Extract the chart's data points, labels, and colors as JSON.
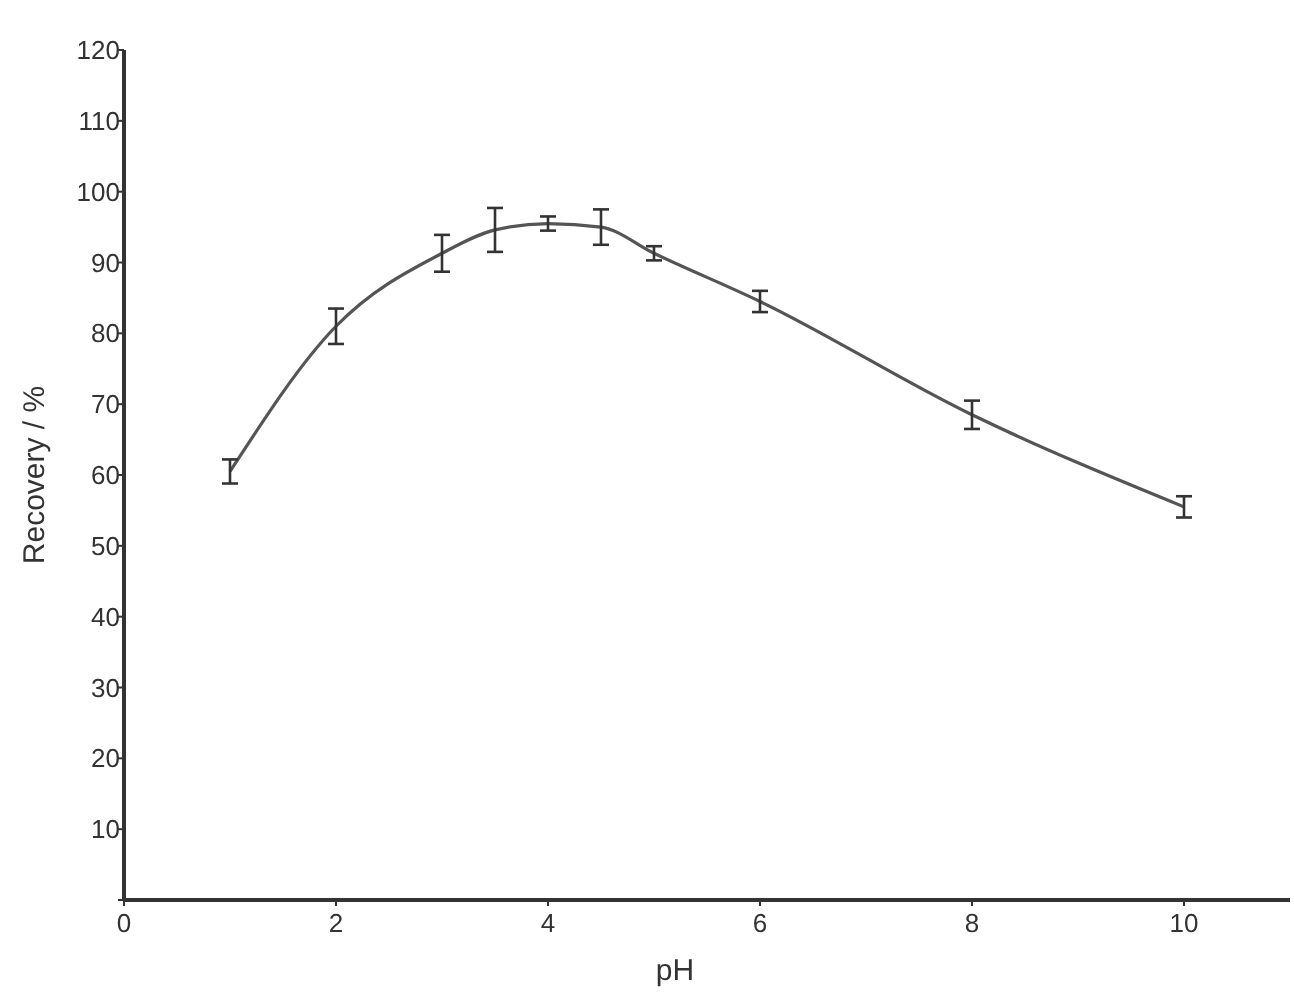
{
  "chart_data": {
    "type": "line",
    "xlabel": "pH",
    "ylabel": "Recovery / %",
    "x": [
      1,
      2,
      3,
      3.5,
      4,
      4.5,
      5,
      6,
      8,
      10
    ],
    "series": [
      {
        "color": "#555555",
        "values": [
          60.5,
          81,
          91.3,
          94.6,
          95.5,
          95,
          91.3,
          84.5,
          68.5,
          55.5
        ],
        "errors": [
          1.7,
          2.5,
          2.6,
          3.1,
          1,
          2.5,
          1,
          1.5,
          2,
          1.5
        ]
      }
    ],
    "xlim": [
      0,
      11
    ],
    "xticks": [
      0,
      2,
      4,
      6,
      8,
      10
    ],
    "ylim": [
      0,
      120
    ],
    "yticks": [
      {
        "value": 0,
        "label": null
      },
      10,
      20,
      30,
      40,
      50,
      60,
      70,
      80,
      90,
      100,
      110,
      120
    ],
    "grid": false,
    "marker": "none",
    "line_style": "solid"
  }
}
